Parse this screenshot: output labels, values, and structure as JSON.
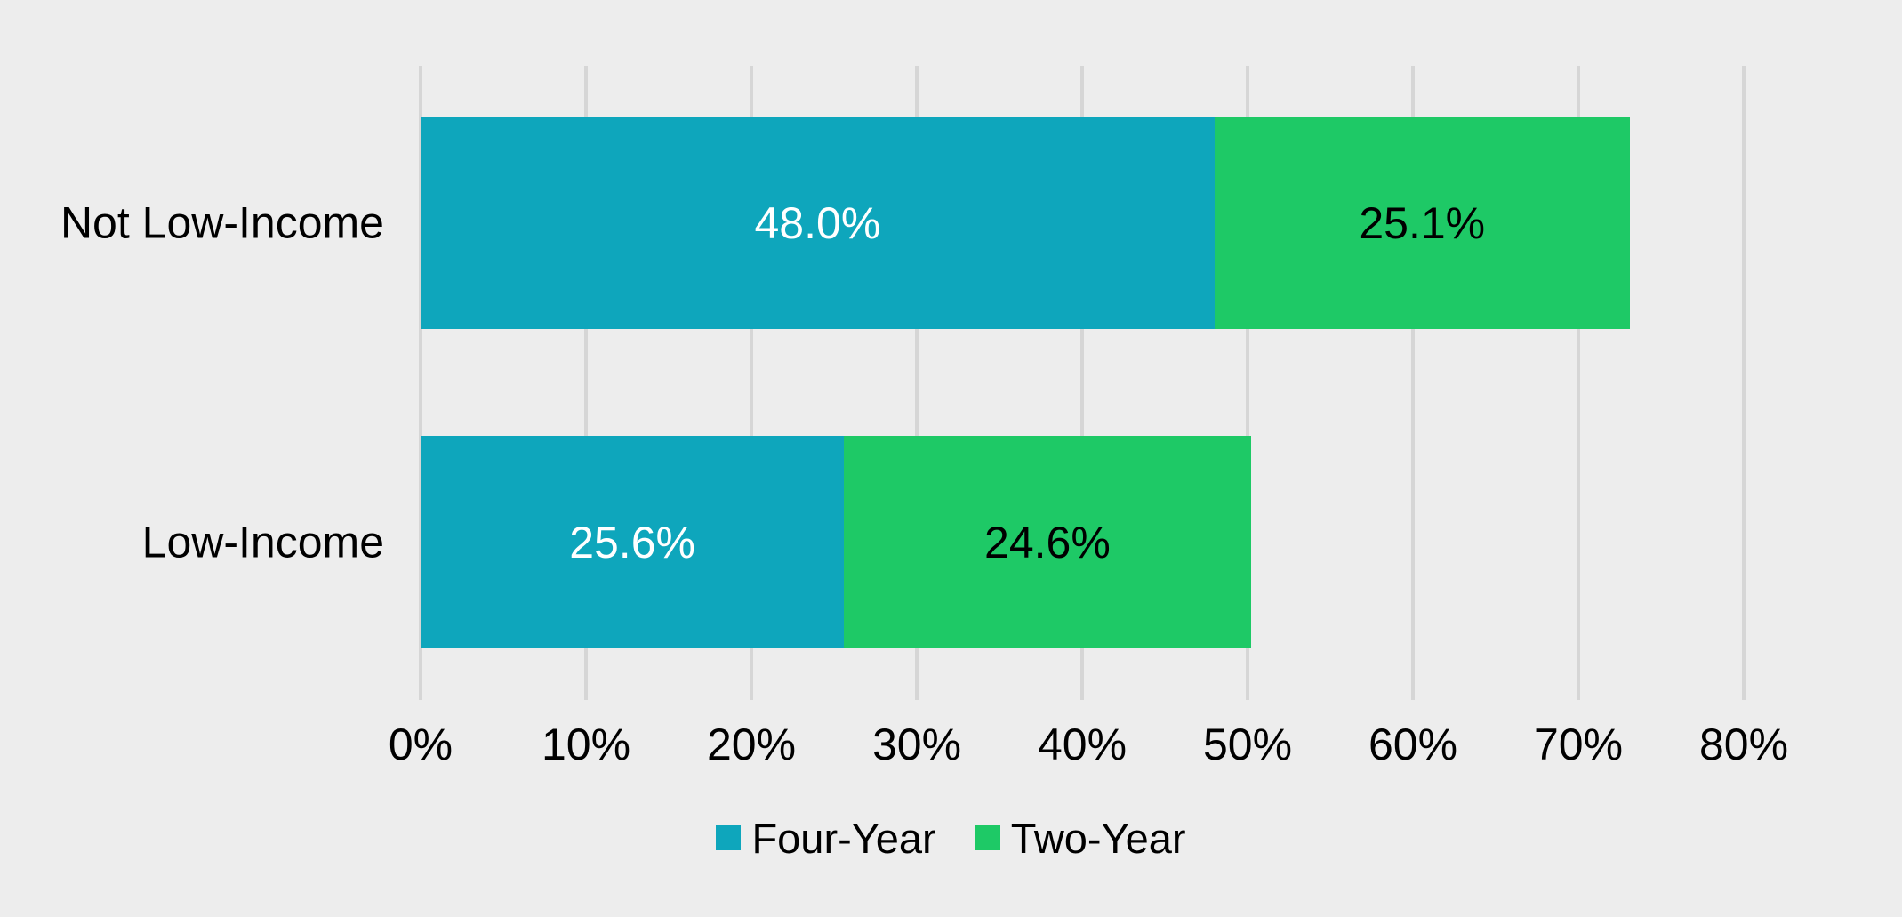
{
  "chart_data": {
    "type": "bar",
    "orientation": "horizontal",
    "stacked": true,
    "title": "",
    "categories": [
      "Not Low-Income",
      "Low-Income"
    ],
    "series": [
      {
        "name": "Four-Year",
        "color": "#0EA6BC",
        "values": [
          48.0,
          25.6
        ],
        "data_labels": [
          "48.0%",
          "25.6%"
        ],
        "label_color": "#FFFFFF"
      },
      {
        "name": "Two-Year",
        "color": "#1EC966",
        "values": [
          25.1,
          24.6
        ],
        "data_labels": [
          "25.1%",
          "24.6%"
        ],
        "label_color": "#000000"
      }
    ],
    "x_axis": {
      "min": 0,
      "max": 80,
      "tick_step": 10,
      "tick_labels": [
        "0%",
        "10%",
        "20%",
        "30%",
        "40%",
        "50%",
        "60%",
        "70%",
        "80%"
      ]
    },
    "legend": {
      "position": "bottom",
      "items": [
        {
          "label": "Four-Year",
          "color": "#0EA6BC"
        },
        {
          "label": "Two-Year",
          "color": "#1EC966"
        }
      ]
    },
    "grid": true,
    "background": "#EDEDED",
    "gridline_color": "#D6D6D6",
    "text_color": "#000000"
  }
}
